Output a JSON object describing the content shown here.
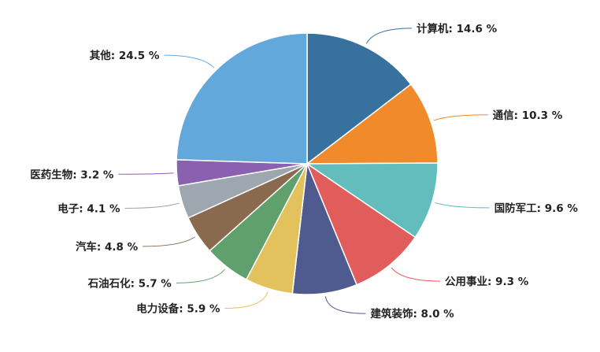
{
  "chart_data": {
    "type": "pie",
    "start_angle_deg": 0,
    "direction": "clockwise",
    "slices": [
      {
        "name": "计算机",
        "value": 14.6,
        "label": "计算机: 14.6 %",
        "color": "#37729f"
      },
      {
        "name": "通信",
        "value": 10.3,
        "label": "通信: 10.3 %",
        "color": "#f08a2a"
      },
      {
        "name": "国防军工",
        "value": 9.6,
        "label": "国防军工: 9.6 %",
        "color": "#63bdbd"
      },
      {
        "name": "公用事业",
        "value": 9.3,
        "label": "公用事业: 9.3 %",
        "color": "#e05d5c"
      },
      {
        "name": "建筑装饰",
        "value": 8.0,
        "label": "建筑装饰: 8.0 %",
        "color": "#4f5a8f"
      },
      {
        "name": "电力设备",
        "value": 5.9,
        "label": "电力设备: 5.9 %",
        "color": "#e3c25d"
      },
      {
        "name": "石油石化",
        "value": 5.7,
        "label": "石油石化: 5.7 %",
        "color": "#5fa06d"
      },
      {
        "name": "汽车",
        "value": 4.8,
        "label": "汽车: 4.8 %",
        "color": "#8a6a4f"
      },
      {
        "name": "电子",
        "value": 4.1,
        "label": "电子: 4.1 %",
        "color": "#9ea7b0"
      },
      {
        "name": "医药生物",
        "value": 3.2,
        "label": "医药生物: 3.2 %",
        "color": "#8a60b0"
      },
      {
        "name": "其他",
        "value": 24.5,
        "label": "其他: 24.5 %",
        "color": "#62a8db"
      }
    ]
  }
}
